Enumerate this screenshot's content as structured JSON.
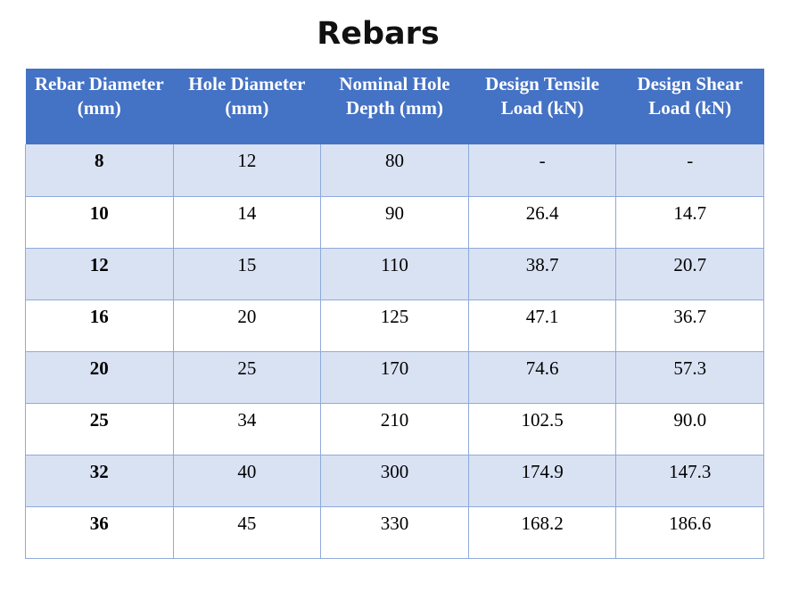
{
  "title": "Rebars",
  "table": {
    "headers": [
      "Rebar Diameter (mm)",
      "Hole Diameter (mm)",
      "Nominal Hole Depth (mm)",
      "Design Tensile Load (kN)",
      "Design Shear Load (kN)"
    ],
    "rows": [
      [
        "8",
        "12",
        "80",
        "-",
        "-"
      ],
      [
        "10",
        "14",
        "90",
        "26.4",
        "14.7"
      ],
      [
        "12",
        "15",
        "110",
        "38.7",
        "20.7"
      ],
      [
        "16",
        "20",
        "125",
        "47.1",
        "36.7"
      ],
      [
        "20",
        "25",
        "170",
        "74.6",
        "57.3"
      ],
      [
        "25",
        "34",
        "210",
        "102.5",
        "90.0"
      ],
      [
        "32",
        "40",
        "300",
        "174.9",
        "147.3"
      ],
      [
        "36",
        "45",
        "330",
        "168.2",
        "186.6"
      ]
    ]
  },
  "colors": {
    "header_bg": "#4472c4",
    "band_bg": "#d9e2f3",
    "border": "#8eaadb"
  }
}
